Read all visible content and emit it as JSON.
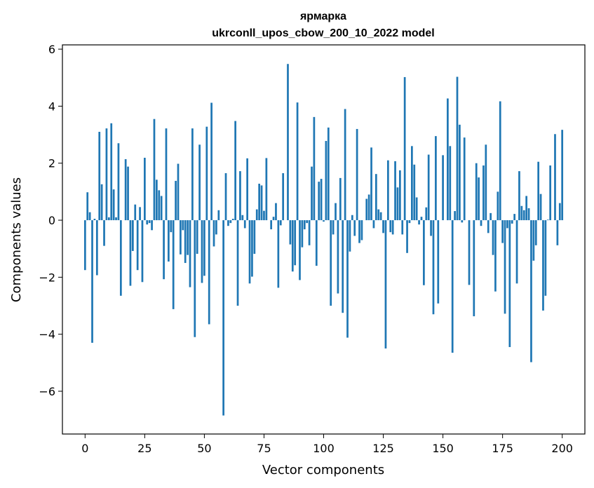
{
  "chart_data": {
    "type": "bar",
    "title": "ярмарка",
    "subtitle": "ukrconll_upos_cbow_200_10_2022 model",
    "xlabel": "Vector components",
    "ylabel": "Components values",
    "xlim": [
      -9.5,
      209.5
    ],
    "ylim": [
      -7.5,
      6.15
    ],
    "xticks": [
      0,
      25,
      50,
      75,
      100,
      125,
      150,
      175,
      200
    ],
    "xtick_labels": [
      "0",
      "25",
      "50",
      "75",
      "100",
      "125",
      "150",
      "175",
      "200"
    ],
    "yticks": [
      -6,
      -4,
      -2,
      0,
      2,
      4,
      6
    ],
    "ytick_labels": [
      "−6",
      "−4",
      "−2",
      "0",
      "2",
      "4",
      "6"
    ],
    "grid": false,
    "bar_color": "#1f77b4",
    "series": [
      {
        "values": [
          -1.75,
          0.98,
          0.28,
          -4.3,
          0.05,
          -1.93,
          3.1,
          1.26,
          -0.9,
          3.22,
          0.1,
          3.4,
          1.08,
          0.1,
          2.7,
          -2.65,
          0.0,
          2.14,
          1.88,
          -2.3,
          -1.08,
          0.55,
          -1.75,
          0.46,
          -2.17,
          2.19,
          -0.15,
          -0.1,
          -0.35,
          3.55,
          1.42,
          1.05,
          0.85,
          -2.07,
          3.22,
          -1.45,
          -0.42,
          -3.12,
          1.38,
          1.98,
          -1.2,
          -0.35,
          -1.5,
          -1.22,
          -2.35,
          3.22,
          -4.1,
          -1.18,
          2.65,
          -2.2,
          -1.95,
          3.28,
          -3.65,
          4.12,
          -0.92,
          -0.5,
          0.35,
          0.0,
          -6.85,
          1.65,
          -0.2,
          -0.1,
          0.05,
          3.48,
          -3.0,
          1.72,
          0.18,
          -0.28,
          2.17,
          -2.22,
          -1.98,
          -1.18,
          0.38,
          1.28,
          1.22,
          0.33,
          2.18,
          0.0,
          -0.32,
          0.12,
          0.6,
          -2.37,
          -0.18,
          1.65,
          0.0,
          5.48,
          -0.85,
          -1.8,
          -1.58,
          4.13,
          -2.1,
          -0.95,
          -0.32,
          -0.1,
          -0.88,
          1.88,
          3.62,
          -1.6,
          1.35,
          1.45,
          -0.05,
          2.78,
          3.25,
          -3.0,
          -0.5,
          0.6,
          -2.57,
          1.48,
          -3.25,
          3.9,
          -4.12,
          -1.1,
          0.18,
          -0.55,
          3.2,
          -0.8,
          -0.7,
          0.0,
          0.75,
          0.9,
          2.55,
          -0.28,
          1.62,
          0.38,
          0.28,
          -0.45,
          -4.5,
          2.1,
          -0.42,
          -0.5,
          2.07,
          1.15,
          1.75,
          -0.5,
          5.02,
          -1.15,
          -0.1,
          2.6,
          1.95,
          0.8,
          -0.15,
          0.12,
          -2.28,
          0.45,
          2.3,
          -0.55,
          -3.3,
          2.95,
          -2.92,
          0.0,
          2.28,
          0.0,
          4.27,
          2.6,
          -4.65,
          0.32,
          5.03,
          3.35,
          -0.08,
          2.9,
          0.0,
          -2.27,
          0.0,
          -3.37,
          2.0,
          1.5,
          -0.2,
          1.92,
          2.65,
          -0.45,
          0.25,
          -1.22,
          -2.5,
          1.0,
          4.17,
          -0.8,
          -3.28,
          -0.28,
          -4.45,
          -0.12,
          0.22,
          -2.22,
          1.72,
          0.5,
          0.35,
          0.85,
          0.42,
          -4.98,
          -1.42,
          -0.88,
          2.05,
          0.92,
          -3.17,
          -2.65,
          0.02,
          1.92,
          0.0,
          3.02,
          -0.88,
          0.6,
          3.17
        ]
      }
    ]
  }
}
